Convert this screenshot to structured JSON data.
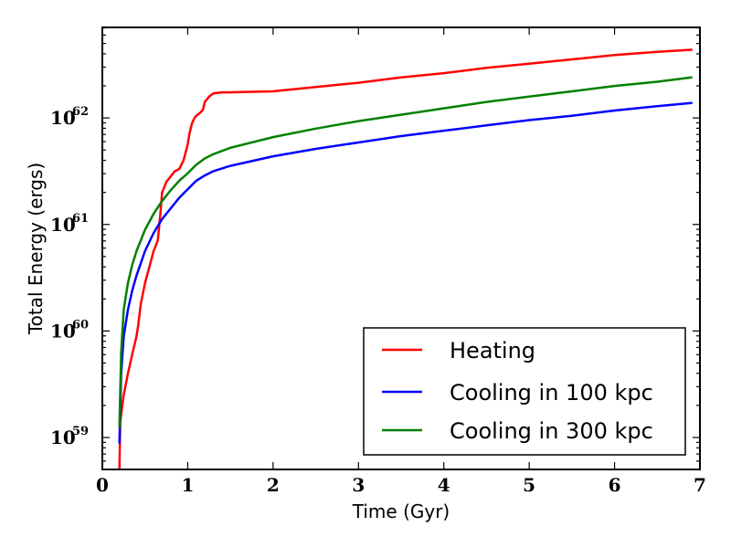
{
  "chart_data": {
    "type": "line",
    "title": "",
    "xlabel": "Time (Gyr)",
    "ylabel": "Total Energy (ergs)",
    "xscale": "linear",
    "yscale": "log",
    "xlim": [
      0,
      7
    ],
    "ylim_log10": [
      58.7,
      62.85
    ],
    "grid": false,
    "legend_position": "lower-right",
    "xticks": [
      {
        "value": 0,
        "label": "0"
      },
      {
        "value": 1,
        "label": "1"
      },
      {
        "value": 2,
        "label": "2"
      },
      {
        "value": 3,
        "label": "3"
      },
      {
        "value": 4,
        "label": "4"
      },
      {
        "value": 5,
        "label": "5"
      },
      {
        "value": 6,
        "label": "6"
      },
      {
        "value": 7,
        "label": "7"
      }
    ],
    "yticks": [
      {
        "exp": 59,
        "base": "10",
        "sup": "59"
      },
      {
        "exp": 60,
        "base": "10",
        "sup": "60"
      },
      {
        "exp": 61,
        "base": "10",
        "sup": "61"
      },
      {
        "exp": 62,
        "base": "10",
        "sup": "62"
      }
    ],
    "series": [
      {
        "name": "Heating",
        "color": "#ff0000",
        "x": [
          0.2,
          0.21,
          0.25,
          0.3,
          0.35,
          0.4,
          0.42,
          0.45,
          0.5,
          0.55,
          0.6,
          0.65,
          0.68,
          0.7,
          0.75,
          0.8,
          0.85,
          0.9,
          0.95,
          1.0,
          1.02,
          1.05,
          1.08,
          1.1,
          1.15,
          1.18,
          1.2,
          1.25,
          1.3,
          1.4,
          1.5,
          2.0,
          2.5,
          3.0,
          3.5,
          4.0,
          4.5,
          5.0,
          5.5,
          6.0,
          6.5,
          6.9
        ],
        "log10": [
          58.7,
          59.15,
          59.4,
          59.6,
          59.78,
          59.95,
          60.05,
          60.25,
          60.45,
          60.6,
          60.75,
          60.85,
          61.1,
          61.3,
          61.4,
          61.45,
          61.5,
          61.52,
          61.6,
          61.75,
          61.85,
          61.95,
          62.0,
          62.02,
          62.05,
          62.08,
          62.15,
          62.2,
          62.23,
          62.24,
          62.24,
          62.25,
          62.29,
          62.33,
          62.38,
          62.42,
          62.47,
          62.51,
          62.55,
          62.59,
          62.62,
          62.64
        ]
      },
      {
        "name": "Cooling in 100 kpc",
        "color": "#0000ff",
        "x": [
          0.2,
          0.22,
          0.25,
          0.3,
          0.35,
          0.4,
          0.5,
          0.6,
          0.7,
          0.8,
          0.9,
          1.0,
          1.1,
          1.2,
          1.3,
          1.5,
          2.0,
          2.5,
          3.0,
          3.5,
          4.0,
          4.5,
          5.0,
          5.5,
          6.0,
          6.5,
          6.9
        ],
        "log10": [
          58.95,
          59.6,
          59.95,
          60.2,
          60.38,
          60.52,
          60.75,
          60.92,
          61.05,
          61.15,
          61.25,
          61.33,
          61.41,
          61.46,
          61.5,
          61.55,
          61.64,
          61.71,
          61.77,
          61.83,
          61.88,
          61.93,
          61.98,
          62.02,
          62.07,
          62.11,
          62.14
        ]
      },
      {
        "name": "Cooling in 300 kpc",
        "color": "#008000",
        "x": [
          0.2,
          0.22,
          0.25,
          0.3,
          0.35,
          0.4,
          0.5,
          0.6,
          0.7,
          0.8,
          0.9,
          1.0,
          1.1,
          1.2,
          1.3,
          1.5,
          2.0,
          2.5,
          3.0,
          3.5,
          4.0,
          4.5,
          5.0,
          5.5,
          6.0,
          6.5,
          6.9
        ],
        "log10": [
          59.1,
          59.8,
          60.2,
          60.45,
          60.62,
          60.75,
          60.95,
          61.1,
          61.22,
          61.32,
          61.41,
          61.48,
          61.56,
          61.62,
          61.66,
          61.72,
          61.82,
          61.9,
          61.97,
          62.03,
          62.09,
          62.15,
          62.2,
          62.25,
          62.3,
          62.34,
          62.38
        ]
      }
    ]
  }
}
